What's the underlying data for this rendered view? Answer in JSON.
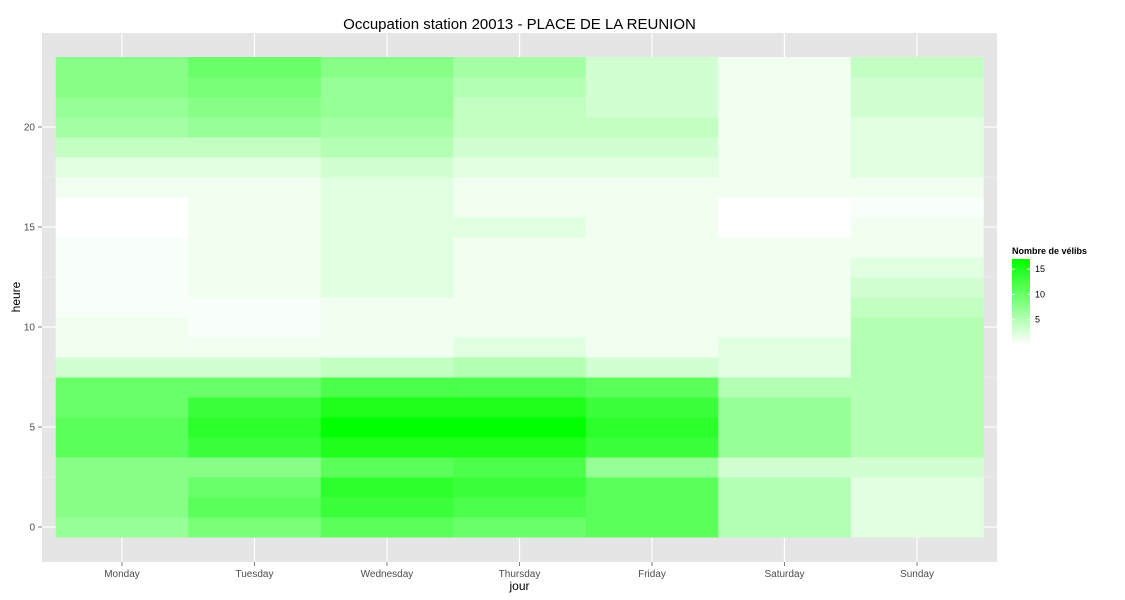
{
  "chart_data": {
    "type": "heatmap",
    "title": "Occupation station 20013 - PLACE DE LA REUNION",
    "xlabel": "jour",
    "ylabel": "heure",
    "x_categories": [
      "Monday",
      "Tuesday",
      "Wednesday",
      "Thursday",
      "Friday",
      "Saturday",
      "Sunday"
    ],
    "y_values": [
      0,
      1,
      2,
      3,
      4,
      5,
      6,
      7,
      8,
      9,
      10,
      11,
      12,
      13,
      14,
      15,
      16,
      17,
      18,
      19,
      20,
      21,
      22,
      23
    ],
    "y_ticks": [
      0,
      5,
      10,
      15,
      20
    ],
    "y_lim": [
      -0.5,
      23.5
    ],
    "grid": true,
    "legend": {
      "title": "Nombre de vélibs",
      "placement": "right",
      "breaks": [
        5,
        10,
        15
      ],
      "range": [
        0,
        17
      ],
      "low_color": "#ffffff",
      "high_color": "#00ff00"
    },
    "z": [
      [
        7,
        8,
        8,
        8,
        11,
        11,
        10,
        10,
        3,
        1,
        1,
        0.5,
        0.5,
        0.5,
        0.5,
        0,
        0,
        1,
        2,
        4,
        6,
        7,
        8,
        8
      ],
      [
        9,
        11,
        10,
        8,
        13,
        14,
        13,
        10,
        3,
        1,
        0.5,
        0.5,
        1,
        1,
        1,
        1,
        1,
        1,
        2,
        4,
        7,
        8,
        9,
        10
      ],
      [
        11,
        13,
        14,
        11,
        15,
        17,
        15,
        12,
        4,
        1,
        1,
        1,
        2,
        2,
        2,
        2,
        2,
        2,
        3,
        5,
        6,
        7,
        7,
        8
      ],
      [
        10,
        12,
        13,
        12,
        15,
        17,
        15,
        12,
        5,
        2,
        1,
        1,
        1,
        1,
        1,
        2,
        1,
        1,
        2,
        3,
        4,
        4,
        5,
        6
      ],
      [
        11,
        11,
        11,
        7,
        13,
        14,
        13,
        11,
        3,
        1,
        1,
        1,
        1,
        1,
        1,
        1,
        1,
        1,
        2,
        3,
        4,
        3,
        3,
        3
      ],
      [
        5,
        5,
        5,
        3,
        7,
        7,
        7,
        5,
        2,
        2,
        1,
        1,
        1,
        1,
        1,
        0,
        0,
        1,
        1,
        1,
        1,
        1,
        1,
        1
      ],
      [
        2,
        2,
        2,
        3,
        5,
        5,
        5,
        5,
        5,
        5,
        5,
        4,
        3,
        2,
        1,
        1,
        0.5,
        1,
        2,
        2,
        2,
        3,
        3,
        4
      ]
    ]
  }
}
